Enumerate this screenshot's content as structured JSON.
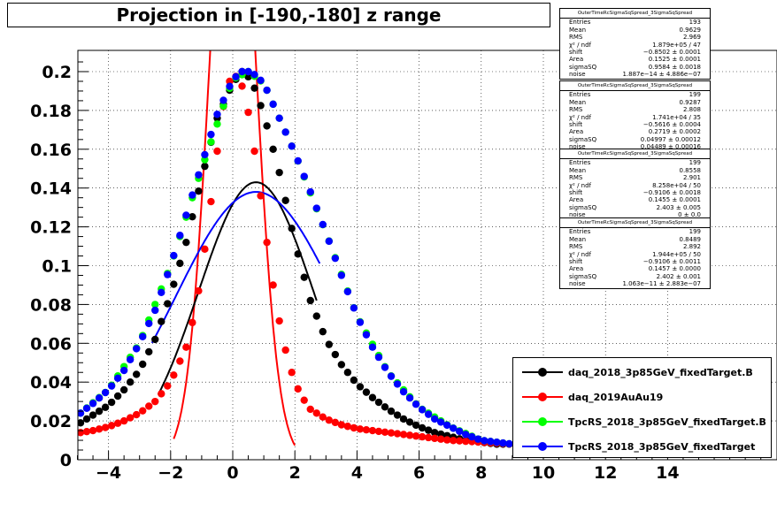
{
  "title": "Projection in [-190,-180] z range",
  "chart_data": {
    "type": "scatter",
    "title": "Projection in [-190,-180] z range",
    "xlabel": "",
    "ylabel": "",
    "xlim": [
      -5,
      17
    ],
    "ylim": [
      0,
      0.21
    ],
    "grid": true,
    "legend_position": "bottom-right",
    "x_ticks": [
      "−4",
      "−2",
      "0",
      "2",
      "4",
      "6",
      "8",
      "10",
      "12",
      "14"
    ],
    "x_tick_values": [
      -4,
      -2,
      0,
      2,
      4,
      6,
      8,
      10,
      12,
      14
    ],
    "y_ticks": [
      "0",
      "0.02",
      "0.04",
      "0.06",
      "0.08",
      "0.1",
      "0.12",
      "0.14",
      "0.16",
      "0.18",
      "0.2"
    ],
    "y_tick_values": [
      0,
      0.02,
      0.04,
      0.06,
      0.08,
      0.1,
      0.12,
      0.14,
      0.16,
      0.18,
      0.2
    ],
    "series": [
      {
        "name": "daq_2018_3p85GeV_fixedTarget.B",
        "color": "#000000",
        "x": [
          -4.9,
          -4.5,
          -4.0,
          -3.5,
          -3.0,
          -2.5,
          -2.0,
          -1.5,
          -1.0,
          -0.5,
          0.0,
          0.3,
          0.6,
          1.0,
          1.5,
          2.0,
          2.5,
          3.0,
          3.5,
          4.0,
          4.5,
          5.0,
          5.5,
          6.0,
          6.5,
          7.0,
          7.5,
          8.0,
          8.5,
          9.0
        ],
        "y": [
          0.019,
          0.023,
          0.028,
          0.036,
          0.046,
          0.062,
          0.085,
          0.112,
          0.145,
          0.176,
          0.194,
          0.2,
          0.196,
          0.178,
          0.148,
          0.112,
          0.082,
          0.062,
          0.049,
          0.039,
          0.032,
          0.026,
          0.021,
          0.017,
          0.014,
          0.012,
          0.01,
          0.009,
          0.008,
          0.008
        ]
      },
      {
        "name": "daq_2019AuAu19",
        "color": "#ff0000",
        "x": [
          -4.9,
          -4.5,
          -4.0,
          -3.5,
          -3.0,
          -2.5,
          -2.0,
          -1.5,
          -1.2,
          -1.0,
          -0.8,
          -0.6,
          -0.4,
          -0.2,
          0.0,
          0.2,
          0.4,
          0.6,
          0.8,
          1.0,
          1.2,
          1.4,
          1.6,
          1.8,
          2.0,
          2.2,
          2.5,
          3.0,
          3.5,
          4.0,
          5.0,
          6.0,
          7.0,
          8.0,
          9.0
        ],
        "y": [
          0.014,
          0.015,
          0.017,
          0.02,
          0.024,
          0.03,
          0.04,
          0.058,
          0.077,
          0.097,
          0.12,
          0.146,
          0.172,
          0.192,
          0.198,
          0.197,
          0.188,
          0.17,
          0.148,
          0.124,
          0.1,
          0.08,
          0.063,
          0.05,
          0.04,
          0.033,
          0.026,
          0.021,
          0.018,
          0.016,
          0.014,
          0.012,
          0.01,
          0.009,
          0.008
        ]
      },
      {
        "name": "TpcRS_2018_3p85GeV_fixedTarget.B",
        "color": "#00ff00",
        "x": [
          -4.9,
          -4.0,
          -3.0,
          -2.0,
          -1.0,
          0.0,
          0.5,
          1.0,
          2.0,
          3.0,
          4.0,
          5.0,
          6.0,
          7.0,
          8.0,
          9.0
        ],
        "y": [
          0.024,
          0.036,
          0.06,
          0.1,
          0.15,
          0.196,
          0.2,
          0.194,
          0.158,
          0.117,
          0.074,
          0.045,
          0.027,
          0.017,
          0.01,
          0.008
        ]
      },
      {
        "name": "TpcRS_2018_3p85GeV_fixedTarget",
        "color": "#0000ff",
        "x": [
          -4.9,
          -4.5,
          -4.0,
          -3.5,
          -3.0,
          -2.5,
          -2.0,
          -1.5,
          -1.0,
          -0.5,
          0.0,
          0.3,
          0.6,
          1.0,
          1.5,
          2.0,
          2.5,
          3.0,
          3.5,
          4.0,
          4.5,
          5.0,
          5.5,
          6.0,
          6.5,
          7.0,
          7.5,
          8.0,
          8.5,
          9.0
        ],
        "y": [
          0.024,
          0.029,
          0.036,
          0.046,
          0.06,
          0.077,
          0.1,
          0.126,
          0.152,
          0.178,
          0.196,
          0.2,
          0.2,
          0.194,
          0.176,
          0.158,
          0.138,
          0.117,
          0.095,
          0.074,
          0.058,
          0.045,
          0.035,
          0.027,
          0.021,
          0.017,
          0.013,
          0.01,
          0.009,
          0.008
        ]
      }
    ],
    "fits": [
      {
        "color": "#ff0000",
        "mean": 0.0,
        "sigma": 0.72,
        "amp": 0.35,
        "xrange": [
          -1.9,
          2.0
        ]
      },
      {
        "color": "#000000",
        "mean": 0.75,
        "sigma": 1.85,
        "amp": 0.143,
        "xrange": [
          -2.4,
          2.7
        ]
      },
      {
        "color": "#0000ff",
        "mean": 0.75,
        "sigma": 2.6,
        "amp": 0.138,
        "xrange": [
          -2.6,
          2.8
        ]
      }
    ]
  },
  "stats_boxes": [
    {
      "name": "OuterTimeRcSigmaSqSpread_3SigmaSqSpread",
      "rows": [
        [
          "Entries",
          "193"
        ],
        [
          "Mean",
          "0.9629"
        ],
        [
          "RMS",
          "2.969"
        ],
        [
          "χ² / ndf",
          "1.879e+05 / 47"
        ],
        [
          "shift",
          "−0.8502 ± 0.0001"
        ],
        [
          "Area",
          "0.1525 ± 0.0001"
        ],
        [
          "sigmaSQ",
          "0.9584 ± 0.0018"
        ],
        [
          "noise",
          "1.887e−14 ± 4.886e−07"
        ]
      ]
    },
    {
      "name": "OuterTimeRcSigmaSqSpread_3SigmaSqSpread",
      "rows": [
        [
          "Entries",
          "199"
        ],
        [
          "Mean",
          "0.9287"
        ],
        [
          "RMS",
          "2.808"
        ],
        [
          "χ² / ndf",
          "1.741e+04 / 35"
        ],
        [
          "shift",
          "−0.5616 ± 0.0004"
        ],
        [
          "Area",
          "0.2719 ± 0.0002"
        ],
        [
          "sigmaSQ",
          "0.04997 ± 0.00012"
        ],
        [
          "noise",
          "0.04489 ± 0.00016"
        ]
      ]
    },
    {
      "name": "OuterTimeRcSigmaSqSpread_3SigmaSqSpread",
      "rows": [
        [
          "Entries",
          "199"
        ],
        [
          "Mean",
          "0.8558"
        ],
        [
          "RMS",
          "2.901"
        ],
        [
          "χ² / ndf",
          "8.258e+04 / 50"
        ],
        [
          "shift",
          "−0.9106 ± 0.0018"
        ],
        [
          "Area",
          "0.1455 ± 0.0001"
        ],
        [
          "sigmaSQ",
          "2.403 ± 0.005"
        ],
        [
          "noise",
          "0 ± 0.0"
        ]
      ]
    },
    {
      "name": "OuterTimeRcSigmaSqSpread_3SigmaSqSpread",
      "rows": [
        [
          "Entries",
          "199"
        ],
        [
          "Mean",
          "0.8489"
        ],
        [
          "RMS",
          "2.892"
        ],
        [
          "χ² / ndf",
          "1.944e+05 / 50"
        ],
        [
          "shift",
          "−0.9106 ± 0.0011"
        ],
        [
          "Area",
          "0.1457 ± 0.0000"
        ],
        [
          "sigmaSQ",
          "2.402 ± 0.001"
        ],
        [
          "noise",
          "1.063e−11 ± 2.883e−07"
        ]
      ]
    }
  ],
  "legend": [
    {
      "label": "daq_2018_3p85GeV_fixedTarget.B",
      "color": "#000000"
    },
    {
      "label": "daq_2019AuAu19",
      "color": "#ff0000"
    },
    {
      "label": "TpcRS_2018_3p85GeV_fixedTarget.B",
      "color": "#00ff00"
    },
    {
      "label": "TpcRS_2018_3p85GeV_fixedTarget",
      "color": "#0000ff"
    }
  ]
}
